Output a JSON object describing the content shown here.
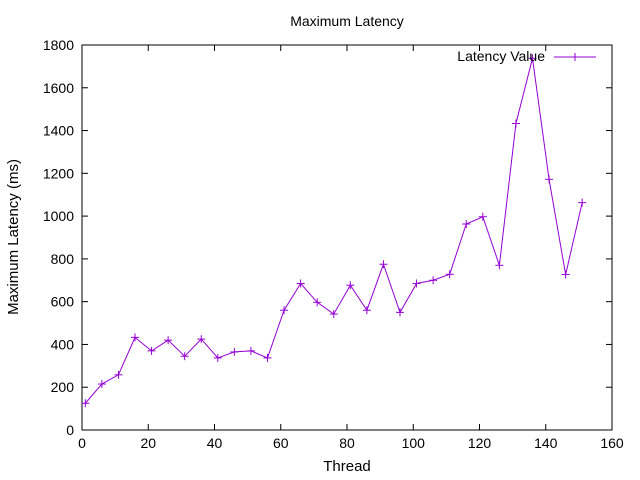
{
  "chart_data": {
    "type": "line",
    "title": "Maximum Latency",
    "xlabel": "Thread",
    "ylabel": "Maximum Latency (ms)",
    "xlim": [
      0,
      160
    ],
    "ylim": [
      0,
      1800
    ],
    "xticks": [
      0,
      20,
      40,
      60,
      80,
      100,
      120,
      140,
      160
    ],
    "yticks": [
      0,
      200,
      400,
      600,
      800,
      1000,
      1200,
      1400,
      1600,
      1800
    ],
    "grid": false,
    "legend_position": "top-right",
    "marker": "plus",
    "series": [
      {
        "name": "Latency Value",
        "color": "#9400d3",
        "x": [
          1,
          6,
          11,
          16,
          21,
          26,
          31,
          36,
          41,
          46,
          51,
          56,
          61,
          66,
          71,
          76,
          81,
          86,
          91,
          96,
          101,
          106,
          111,
          116,
          121,
          126,
          131,
          136,
          141,
          146,
          151
        ],
        "y": [
          125,
          215,
          258,
          433,
          370,
          420,
          345,
          425,
          337,
          365,
          370,
          337,
          560,
          685,
          597,
          542,
          677,
          560,
          775,
          550,
          685,
          700,
          728,
          963,
          997,
          770,
          1433,
          1738,
          1172,
          727,
          1063
        ]
      }
    ]
  }
}
